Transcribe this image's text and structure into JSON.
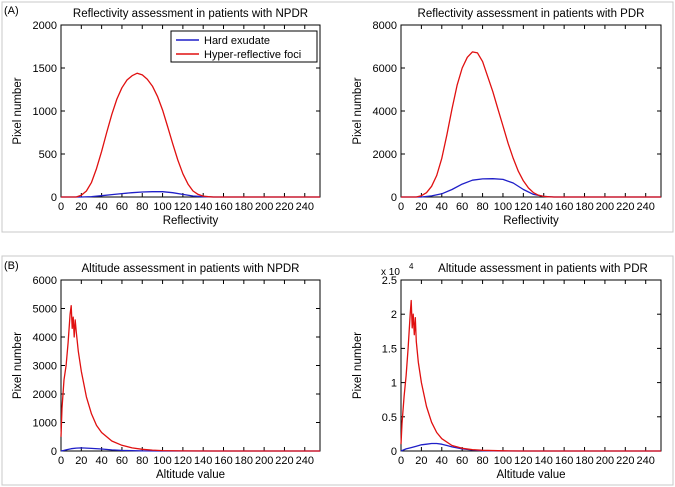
{
  "figure": {
    "panel_a_label": "(A)",
    "panel_b_label": "(B)",
    "colors": {
      "hard_exudate": "#1f1fc8",
      "hyper_reflective_foci": "#e01010",
      "axes": "#000000",
      "frame": "#c8c8c8"
    }
  },
  "chart_data": [
    {
      "type": "line",
      "title": "Reflectivity assessment in patients with NPDR",
      "xlabel": "Reflectivity",
      "ylabel": "Pixel number",
      "xlim": [
        0,
        255
      ],
      "ylim": [
        0,
        2000
      ],
      "xticks": [
        0,
        20,
        40,
        60,
        80,
        100,
        120,
        140,
        160,
        180,
        200,
        220,
        240
      ],
      "yticks": [
        0,
        500,
        1000,
        1500,
        2000
      ],
      "y_exponent": "",
      "legend": {
        "position": "top-right",
        "entries": [
          "Hard exudate",
          "Hyper-reflective foci"
        ]
      },
      "series": [
        {
          "name": "Hard exudate",
          "color": "#1f1fc8",
          "x": [
            0,
            20,
            30,
            40,
            50,
            60,
            70,
            80,
            90,
            100,
            110,
            120,
            130,
            140,
            150,
            255
          ],
          "y": [
            0,
            0,
            5,
            15,
            28,
            40,
            50,
            58,
            62,
            62,
            50,
            30,
            12,
            3,
            0,
            0
          ]
        },
        {
          "name": "Hyper-reflective foci",
          "color": "#e01010",
          "x": [
            0,
            15,
            20,
            25,
            30,
            35,
            40,
            45,
            50,
            55,
            60,
            65,
            70,
            75,
            80,
            85,
            90,
            95,
            100,
            105,
            110,
            115,
            120,
            125,
            130,
            135,
            140,
            145,
            150,
            255
          ],
          "y": [
            0,
            0,
            20,
            70,
            170,
            330,
            530,
            750,
            960,
            1140,
            1270,
            1360,
            1410,
            1440,
            1420,
            1370,
            1290,
            1170,
            1010,
            820,
            620,
            430,
            270,
            150,
            70,
            30,
            10,
            3,
            0,
            0
          ]
        }
      ]
    },
    {
      "type": "line",
      "title": "Reflectivity assessment in patients with PDR",
      "xlabel": "Reflectivity",
      "ylabel": "Pixel number",
      "xlim": [
        0,
        255
      ],
      "ylim": [
        0,
        8000
      ],
      "xticks": [
        0,
        20,
        40,
        60,
        80,
        100,
        120,
        140,
        160,
        180,
        200,
        220,
        240
      ],
      "yticks": [
        0,
        2000,
        4000,
        6000,
        8000
      ],
      "y_exponent": "",
      "series": [
        {
          "name": "Hard exudate",
          "color": "#1f1fc8",
          "x": [
            0,
            20,
            30,
            40,
            50,
            60,
            70,
            80,
            90,
            100,
            110,
            120,
            130,
            140,
            150,
            255
          ],
          "y": [
            0,
            0,
            50,
            150,
            350,
            600,
            780,
            840,
            850,
            820,
            650,
            350,
            120,
            30,
            0,
            0
          ]
        },
        {
          "name": "Hyper-reflective foci",
          "color": "#e01010",
          "x": [
            0,
            15,
            20,
            25,
            30,
            35,
            40,
            45,
            50,
            55,
            60,
            65,
            70,
            75,
            80,
            85,
            90,
            95,
            100,
            105,
            110,
            115,
            120,
            125,
            130,
            135,
            140,
            145,
            150,
            255
          ],
          "y": [
            0,
            0,
            60,
            200,
            500,
            1000,
            1800,
            2900,
            4100,
            5200,
            6000,
            6500,
            6750,
            6700,
            6300,
            5600,
            4900,
            4100,
            3300,
            2500,
            1800,
            1200,
            750,
            420,
            200,
            80,
            30,
            10,
            0,
            0
          ]
        }
      ]
    },
    {
      "type": "line",
      "title": "Altitude assessment in patients with NPDR",
      "xlabel": "Altitude value",
      "ylabel": "Pixel number",
      "xlim": [
        0,
        255
      ],
      "ylim": [
        0,
        6000
      ],
      "xticks": [
        0,
        20,
        40,
        60,
        80,
        100,
        120,
        140,
        160,
        180,
        200,
        220,
        240
      ],
      "yticks": [
        0,
        1000,
        2000,
        3000,
        4000,
        5000,
        6000
      ],
      "y_exponent": "",
      "series": [
        {
          "name": "Hard exudate",
          "color": "#1f1fc8",
          "x": [
            0,
            3,
            6,
            10,
            15,
            20,
            25,
            30,
            40,
            50,
            60,
            80,
            100,
            255
          ],
          "y": [
            0,
            20,
            50,
            80,
            100,
            110,
            100,
            90,
            70,
            40,
            20,
            5,
            0,
            0
          ]
        },
        {
          "name": "Hyper-reflective foci",
          "color": "#e01010",
          "x": [
            0,
            1,
            3,
            5,
            7,
            9,
            10,
            11,
            12,
            13,
            14,
            15,
            17,
            20,
            25,
            30,
            35,
            40,
            50,
            60,
            70,
            80,
            90,
            100,
            120,
            150,
            255
          ],
          "y": [
            500,
            1500,
            2500,
            3000,
            3800,
            4800,
            5100,
            4300,
            4700,
            4000,
            4600,
            4200,
            3500,
            2800,
            1900,
            1300,
            900,
            650,
            350,
            200,
            110,
            60,
            30,
            15,
            5,
            0,
            0
          ]
        }
      ]
    },
    {
      "type": "line",
      "title": "Altitude assessment in patients with PDR",
      "xlabel": "Altitude value",
      "ylabel": "Pixel number",
      "xlim": [
        0,
        255
      ],
      "ylim": [
        0,
        2.5
      ],
      "xticks": [
        0,
        20,
        40,
        60,
        80,
        100,
        120,
        140,
        160,
        180,
        200,
        220,
        240
      ],
      "yticks": [
        0,
        0.5,
        1,
        1.5,
        2,
        2.5
      ],
      "y_exponent": "x 10",
      "y_exponent_power": "4",
      "series": [
        {
          "name": "Hard exudate",
          "color": "#1f1fc8",
          "x": [
            0,
            5,
            10,
            15,
            20,
            25,
            30,
            35,
            40,
            45,
            50,
            60,
            70,
            80,
            100,
            255
          ],
          "y": [
            0,
            0.03,
            0.05,
            0.07,
            0.09,
            0.1,
            0.11,
            0.11,
            0.1,
            0.08,
            0.06,
            0.03,
            0.015,
            0.005,
            0,
            0
          ]
        },
        {
          "name": "Hyper-reflective foci",
          "color": "#e01010",
          "x": [
            0,
            1,
            3,
            5,
            7,
            9,
            10,
            11,
            12,
            13,
            14,
            15,
            17,
            20,
            25,
            30,
            35,
            40,
            50,
            60,
            70,
            80,
            100,
            120,
            150,
            255
          ],
          "y": [
            0.1,
            0.4,
            0.8,
            1.1,
            1.5,
            2.0,
            2.2,
            1.8,
            2.0,
            1.7,
            1.95,
            1.6,
            1.3,
            1.0,
            0.65,
            0.42,
            0.27,
            0.18,
            0.08,
            0.04,
            0.02,
            0.01,
            0.003,
            0,
            0,
            0
          ]
        }
      ]
    }
  ]
}
